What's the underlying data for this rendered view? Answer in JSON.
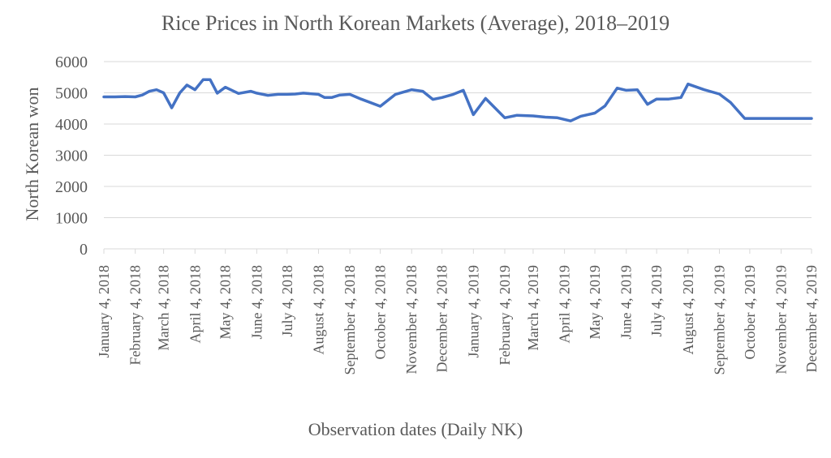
{
  "chart_data": {
    "type": "line",
    "title": "Rice Prices in North Korean Markets (Average), 2018–2019",
    "xlabel": "Observation dates (Daily NK)",
    "ylabel": "North Korean won",
    "ylim": [
      0,
      6000
    ],
    "yticks": [
      0,
      1000,
      2000,
      3000,
      4000,
      5000,
      6000
    ],
    "grid": "horizontal",
    "legend": "none",
    "line_color": "#4472C4",
    "x_tick_labels": [
      {
        "date": "2018-01-04",
        "label": "January 4, 2018"
      },
      {
        "date": "2018-02-04",
        "label": "February 4, 2018"
      },
      {
        "date": "2018-03-04",
        "label": "March 4, 2018"
      },
      {
        "date": "2018-04-04",
        "label": "April 4, 2018"
      },
      {
        "date": "2018-05-04",
        "label": "May 4, 2018"
      },
      {
        "date": "2018-06-04",
        "label": "June 4, 2018"
      },
      {
        "date": "2018-07-04",
        "label": "July 4, 2018"
      },
      {
        "date": "2018-08-04",
        "label": "August 4, 2018"
      },
      {
        "date": "2018-09-04",
        "label": "September 4, 2018"
      },
      {
        "date": "2018-10-04",
        "label": "October 4, 2018"
      },
      {
        "date": "2018-11-04",
        "label": "November 4, 2018"
      },
      {
        "date": "2018-12-04",
        "label": "December 4, 2018"
      },
      {
        "date": "2019-01-04",
        "label": "January 4, 2019"
      },
      {
        "date": "2019-02-04",
        "label": "February 4, 2019"
      },
      {
        "date": "2019-03-04",
        "label": "March 4, 2019"
      },
      {
        "date": "2019-04-04",
        "label": "April 4, 2019"
      },
      {
        "date": "2019-05-04",
        "label": "May 4, 2019"
      },
      {
        "date": "2019-06-04",
        "label": "June 4, 2019"
      },
      {
        "date": "2019-07-04",
        "label": "July 4, 2019"
      },
      {
        "date": "2019-08-04",
        "label": "August 4, 2019"
      },
      {
        "date": "2019-09-04",
        "label": "September 4, 2019"
      },
      {
        "date": "2019-10-04",
        "label": "October 4, 2019"
      },
      {
        "date": "2019-11-04",
        "label": "November 4, 2019"
      },
      {
        "date": "2019-12-04",
        "label": "December 4, 2019"
      }
    ],
    "series": [
      {
        "x": [
          "2018-01-04",
          "2018-01-15",
          "2018-01-25",
          "2018-02-04",
          "2018-02-11",
          "2018-02-18",
          "2018-02-25",
          "2018-03-04",
          "2018-03-12",
          "2018-03-20",
          "2018-03-27",
          "2018-04-04",
          "2018-04-12",
          "2018-04-19",
          "2018-04-26",
          "2018-05-04",
          "2018-05-17",
          "2018-05-29",
          "2018-06-04",
          "2018-06-15",
          "2018-06-25",
          "2018-07-04",
          "2018-07-12",
          "2018-07-20",
          "2018-08-04",
          "2018-08-10",
          "2018-08-17",
          "2018-08-25",
          "2018-09-04",
          "2018-09-15",
          "2018-10-04",
          "2018-10-19",
          "2018-11-04",
          "2018-11-15",
          "2018-11-25",
          "2018-12-04",
          "2018-12-15",
          "2018-12-25",
          "2019-01-04",
          "2019-01-16",
          "2019-02-04",
          "2019-02-16",
          "2019-03-04",
          "2019-03-16",
          "2019-03-28",
          "2019-04-10",
          "2019-04-20",
          "2019-05-04",
          "2019-05-14",
          "2019-05-26",
          "2019-06-04",
          "2019-06-15",
          "2019-06-25",
          "2019-07-04",
          "2019-07-16",
          "2019-07-28",
          "2019-08-04",
          "2019-08-20",
          "2019-09-04",
          "2019-09-15",
          "2019-09-29",
          "2019-10-04",
          "2019-10-15",
          "2019-10-29",
          "2019-11-04",
          "2019-11-20",
          "2019-12-04"
        ],
        "values": [
          4870,
          4870,
          4880,
          4870,
          4930,
          5050,
          5100,
          5000,
          4520,
          5000,
          5250,
          5100,
          5420,
          5420,
          4990,
          5180,
          4980,
          5050,
          4990,
          4920,
          4950,
          4950,
          4960,
          4990,
          4950,
          4850,
          4850,
          4930,
          4950,
          4800,
          4570,
          4950,
          5100,
          5050,
          4790,
          4850,
          4950,
          5080,
          4300,
          4820,
          4200,
          4280,
          4260,
          4220,
          4200,
          4100,
          4250,
          4350,
          4580,
          5150,
          5080,
          5100,
          4630,
          4800,
          4800,
          4850,
          5280,
          5100,
          4960,
          4690,
          4180,
          4180,
          4180,
          4180,
          4180,
          4180,
          4180
        ]
      }
    ]
  }
}
